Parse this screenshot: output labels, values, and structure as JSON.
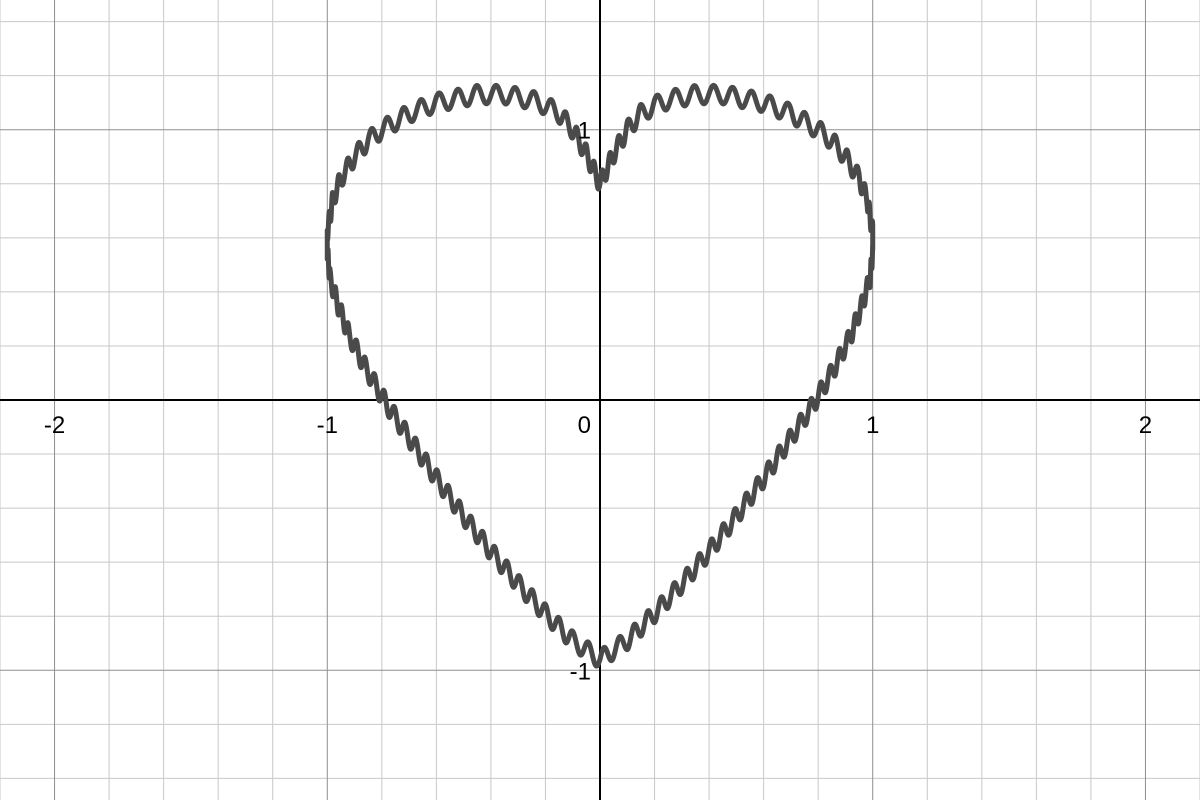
{
  "chart_data": {
    "type": "line",
    "title": "",
    "xlabel": "",
    "ylabel": "",
    "xlim": [
      -2.2,
      2.2
    ],
    "ylim": [
      -1.48,
      1.48
    ],
    "grid": true,
    "minor_grid_step": 0.2,
    "major_grid_step": 1,
    "x_ticks": [
      {
        "value": -2,
        "label": "-2"
      },
      {
        "value": -1,
        "label": "-1"
      },
      {
        "value": 0,
        "label": "0"
      },
      {
        "value": 1,
        "label": "1"
      },
      {
        "value": 2,
        "label": "2"
      }
    ],
    "y_ticks": [
      {
        "value": 1,
        "label": "1"
      },
      {
        "value": -1,
        "label": "-1"
      }
    ],
    "series": [
      {
        "color": "#4a4a4a",
        "points": {
          "x": [
            0.0,
            0.05,
            0.1,
            0.15,
            0.2,
            0.25,
            0.3,
            0.35,
            0.4,
            0.45,
            0.5,
            0.55,
            0.6,
            0.65,
            0.7,
            0.75,
            0.8,
            0.85,
            0.9,
            0.95,
            0.98,
            1.0,
            1.0,
            0.99,
            0.96,
            0.92,
            0.86,
            0.78,
            0.7,
            0.6,
            0.5,
            0.4,
            0.3,
            0.2,
            0.1,
            0.0,
            -0.1,
            -0.2,
            -0.3,
            -0.4,
            -0.5,
            -0.6,
            -0.7,
            -0.78,
            -0.86,
            -0.92,
            -0.96,
            -0.99,
            -1.0,
            -1.0,
            -0.98,
            -0.95,
            -0.9,
            -0.85,
            -0.8,
            -0.75,
            -0.7,
            -0.65,
            -0.6,
            -0.55,
            -0.5,
            -0.45,
            -0.4,
            -0.35,
            -0.3,
            -0.25,
            -0.2,
            -0.15,
            -0.1,
            -0.05,
            0.0
          ],
          "y": [
            0.8,
            0.91,
            1.0,
            1.06,
            1.09,
            1.11,
            1.12,
            1.13,
            1.13,
            1.13,
            1.12,
            1.11,
            1.1,
            1.08,
            1.06,
            1.03,
            1.0,
            0.96,
            0.9,
            0.82,
            0.74,
            0.62,
            0.55,
            0.45,
            0.35,
            0.24,
            0.12,
            -0.02,
            -0.14,
            -0.29,
            -0.43,
            -0.56,
            -0.68,
            -0.79,
            -0.89,
            -0.96,
            -0.89,
            -0.79,
            -0.68,
            -0.56,
            -0.43,
            -0.29,
            -0.14,
            -0.02,
            0.12,
            0.24,
            0.35,
            0.45,
            0.55,
            0.62,
            0.74,
            0.82,
            0.9,
            0.96,
            1.0,
            1.03,
            1.06,
            1.08,
            1.1,
            1.11,
            1.12,
            1.13,
            1.13,
            1.13,
            1.12,
            1.11,
            1.09,
            1.06,
            1.0,
            0.91,
            0.8
          ]
        }
      }
    ]
  }
}
